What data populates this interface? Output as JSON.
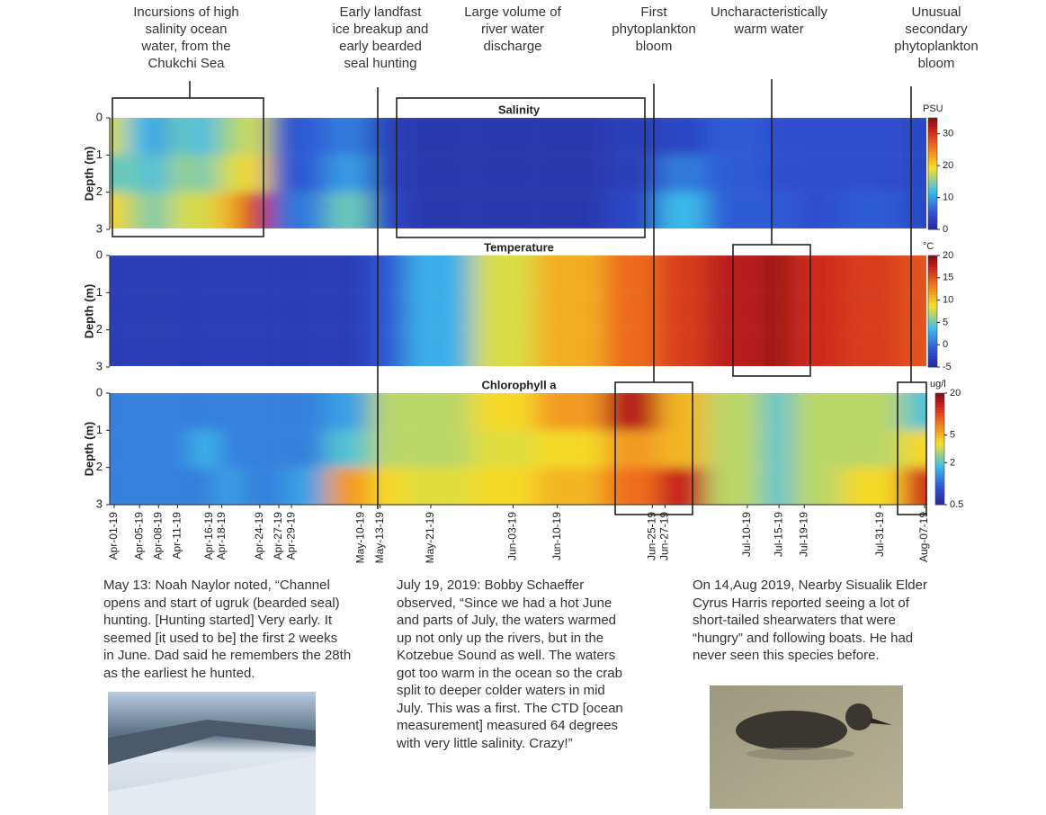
{
  "annotations": [
    [
      "Incursions of high",
      "salinity ocean",
      "water, from the",
      "Chukchi Sea"
    ],
    [
      "Early landfast",
      "ice breakup and",
      "early bearded",
      "seal hunting"
    ],
    [
      "Large volume of",
      "river water",
      "discharge"
    ],
    [
      "First",
      "phytoplankton",
      "bloom"
    ],
    [
      "Uncharacteristically",
      "warm water"
    ],
    [
      "Unusual",
      "secondary",
      "phytoplankton",
      "bloom"
    ]
  ],
  "chart_data": [
    {
      "type": "heatmap",
      "title": "Salinity",
      "ylabel": "Depth (m)",
      "ylim": [
        0,
        3
      ],
      "yticks": [
        0,
        1,
        2,
        3
      ],
      "colorbar_label": "PSU",
      "clim": [
        0,
        35
      ],
      "cticks": [
        0,
        10,
        20,
        30
      ],
      "z": [
        [
          18,
          12,
          10,
          14,
          12,
          16,
          18,
          4,
          6,
          8,
          3,
          2,
          2,
          2,
          3,
          4,
          6,
          5,
          5,
          5,
          4
        ],
        [
          14,
          14,
          12,
          16,
          14,
          18,
          20,
          4,
          6,
          10,
          3,
          2,
          2,
          2,
          3,
          8,
          6,
          5,
          5,
          5,
          4
        ],
        [
          20,
          16,
          14,
          18,
          18,
          22,
          30,
          6,
          8,
          14,
          4,
          2,
          2,
          2,
          4,
          12,
          6,
          6,
          5,
          6,
          4
        ]
      ]
    },
    {
      "type": "heatmap",
      "title": "Temperature",
      "ylabel": "Depth (m)",
      "ylim": [
        0,
        3
      ],
      "yticks": [
        0,
        1,
        2,
        3
      ],
      "colorbar_label": "°C",
      "clim": [
        -5,
        20
      ],
      "cticks": [
        -5,
        0,
        5,
        10,
        15,
        20
      ],
      "z": [
        [
          -3,
          -3,
          -3,
          -3,
          -3,
          -3,
          -3,
          -3,
          -3,
          -3,
          -1,
          3,
          8,
          11,
          14,
          16,
          18,
          19,
          17,
          16,
          15
        ],
        [
          -3,
          -3,
          -3,
          -3,
          -3,
          -3,
          -3,
          -3,
          -3,
          -3,
          -1,
          3,
          8,
          11,
          14,
          16,
          18,
          19,
          17,
          16,
          15
        ],
        [
          -3,
          -3,
          -3,
          -3,
          -3,
          -3,
          -3,
          -3,
          -3,
          -3,
          -1,
          3,
          8,
          11,
          14,
          16,
          18,
          19,
          17,
          16,
          15
        ]
      ]
    },
    {
      "type": "heatmap",
      "title": "Chlorophyll a",
      "ylabel": "Depth (m)",
      "ylim": [
        0,
        3
      ],
      "yticks": [
        0,
        1,
        2,
        3
      ],
      "colorbar_label": "ug/l",
      "clim": [
        0.5,
        20
      ],
      "cticks": [
        0.5,
        2,
        5,
        20
      ],
      "log_color": true,
      "x": [
        "Apr-01-19",
        "Apr-05-19",
        "Apr-08-19",
        "Apr-11-19",
        "Apr-16-19",
        "Apr-18-19",
        "Apr-24-19",
        "Apr-27-19",
        "Apr-29-19",
        "May-10-19",
        "May-13-19",
        "May-21-19",
        "Jun-03-19",
        "Jun-10-19",
        "Jun-25-19",
        "Jun-27-19",
        "Jul-10-19",
        "Jul-15-19",
        "Jul-19-19",
        "Jul-31-19",
        "Aug-07-19"
      ],
      "z": [
        [
          1.2,
          1.2,
          1.2,
          1.2,
          1.2,
          1.2,
          1.2,
          1.2,
          1.2,
          1.5,
          3,
          3,
          4,
          6,
          15,
          5,
          3,
          2,
          3,
          3,
          2
        ],
        [
          1.2,
          1.2,
          1.2,
          1.2,
          1.8,
          1.2,
          1.2,
          1.2,
          1.2,
          2,
          3,
          3,
          3.5,
          4,
          6,
          5,
          3,
          2,
          3,
          3,
          4
        ],
        [
          1.2,
          1.2,
          1.2,
          1.2,
          1.2,
          1.5,
          1.2,
          1.2,
          1.5,
          6,
          4,
          3.5,
          4,
          5,
          8,
          14,
          3,
          2,
          3,
          4,
          12
        ]
      ]
    }
  ],
  "notes": [
    [
      "May 13: Noah Naylor noted, “Channel",
      "opens and start of ugruk (bearded seal)",
      "hunting. [Hunting started] Very early. It",
      "seemed [it used to be] the first 2 weeks",
      "in June. Dad said he remembers the 28th",
      "as the earliest he hunted."
    ],
    [
      "July 19, 2019: Bobby Schaeffer",
      "observed, “Since we had a hot June",
      "and parts of July, the waters warmed",
      "up not only up the rivers, but in the",
      "Kotzebue Sound as well. The waters",
      "got too warm in the ocean so the crab",
      "split to deeper colder waters in mid",
      "July. This was a first. The CTD [ocean",
      "measurement] measured 64 degrees",
      "with very little salinity. Crazy!”"
    ],
    [
      "On 14,Aug 2019, Nearby Sisualik Elder",
      "Cyrus Harris reported seeing a lot of",
      "short-tailed shearwaters that were",
      "“hungry” and following boats. He had",
      "never seen this species before."
    ]
  ]
}
